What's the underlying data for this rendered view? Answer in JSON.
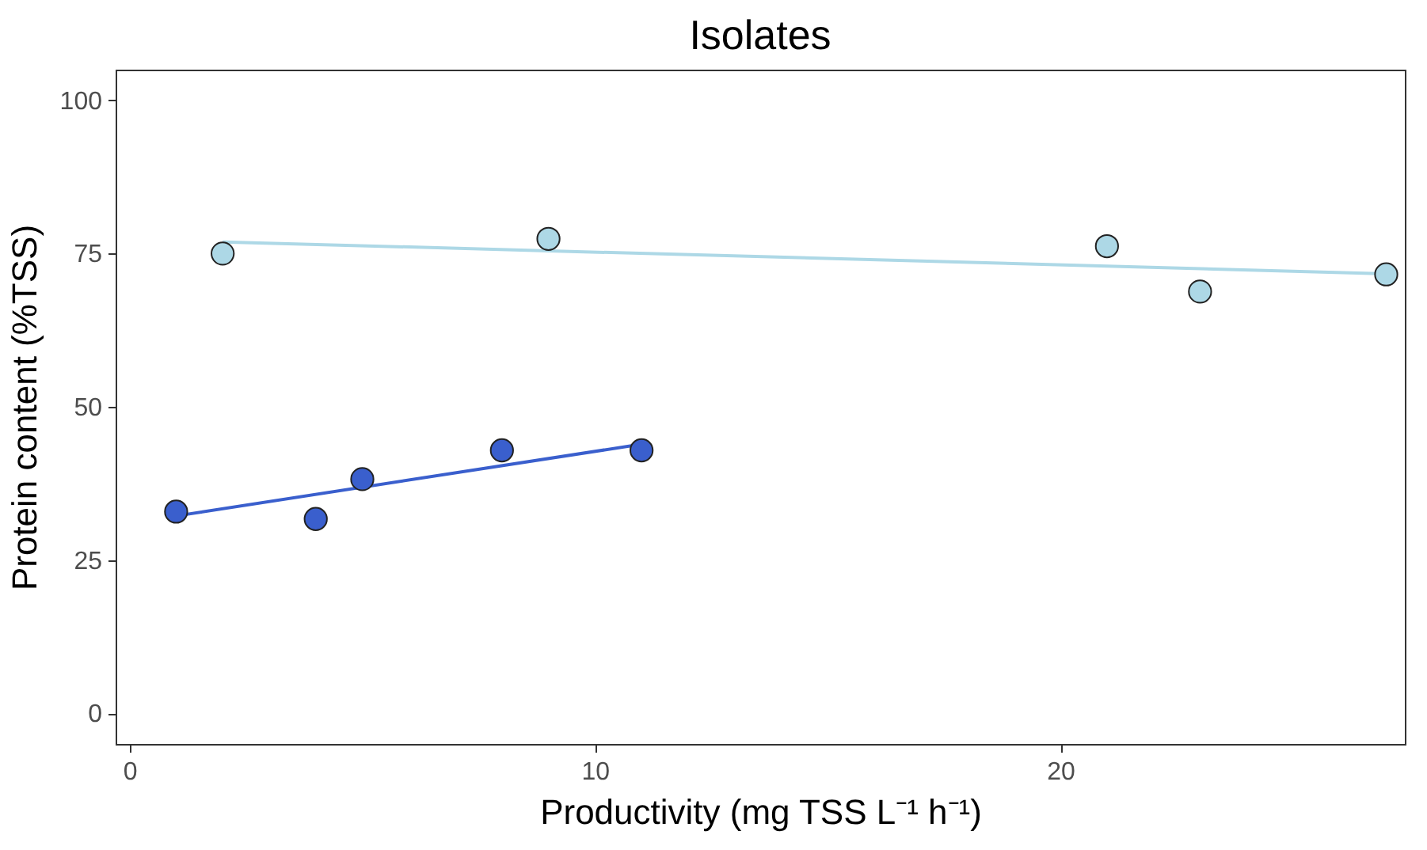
{
  "chart_data": {
    "type": "scatter",
    "title": "Isolates",
    "xlabel": "Productivity (mg TSS L⁻¹ h⁻¹)",
    "ylabel": "Protein content (%TSS)",
    "xlim": [
      -0.3,
      27.4
    ],
    "xticks": [
      0,
      10,
      20
    ],
    "ylim": [
      -5,
      105
    ],
    "yticks": [
      0,
      25,
      50,
      75,
      100
    ],
    "grid": false,
    "legend": false,
    "series": [
      {
        "marker": "circle",
        "color": "#3a5fcd",
        "x": [
          1,
          4,
          5,
          8,
          11
        ],
        "values": [
          32.9,
          31.7,
          38.2,
          42.9,
          42.9
        ]
      },
      {
        "marker": "circle",
        "color": "#add8e6",
        "x": [
          2,
          9,
          21,
          23,
          27
        ],
        "values": [
          75,
          77.4,
          76.2,
          68.8,
          71.6
        ]
      },
      {
        "type": "line",
        "color": "#3a5fcd",
        "x": [
          1,
          11
        ],
        "values": [
          32.2,
          43.9
        ]
      },
      {
        "type": "line",
        "color": "#add8e6",
        "x": [
          2,
          27
        ],
        "values": [
          76.9,
          71.7
        ]
      }
    ]
  }
}
